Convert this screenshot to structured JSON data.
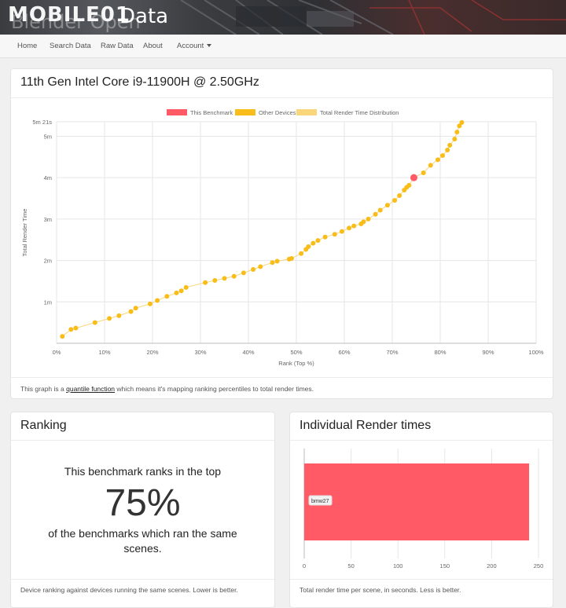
{
  "banner": {
    "watermark": "MOBILE01",
    "brand_behind": "Blender Open",
    "brand": "Data"
  },
  "nav": {
    "home": "Home",
    "search": "Search Data",
    "raw": "Raw Data",
    "about": "About",
    "account": "Account"
  },
  "device": {
    "title": "11th Gen Intel Core i9-11900H @ 2.50GHz"
  },
  "chart_note": {
    "prefix": "This graph is a ",
    "link": "quantile function",
    "suffix": " which means it's mapping ranking percentiles to total render times."
  },
  "ranking": {
    "title": "Ranking",
    "line1": "This benchmark ranks in the top",
    "percent": "75%",
    "line2": "of the benchmarks which ran the same",
    "line3": "scenes.",
    "footer": "Device ranking against devices running the same scenes. Lower is better."
  },
  "render_times": {
    "title": "Individual Render times",
    "footer": "Total render time per scene, in seconds. Less is better."
  },
  "colors": {
    "this_benchmark": "#ff5a65",
    "other_devices": "#f8bd19",
    "distribution": "#f9d67a"
  },
  "chart_data": [
    {
      "type": "scatter",
      "legend": [
        "This Benchmark",
        "Other Devices",
        "Total Render Time Distribution"
      ],
      "legend_position": "top",
      "xlabel": "Rank (Top %)",
      "ylabel": "Total Render Time",
      "x_ticks": [
        "0%",
        "10%",
        "20%",
        "30%",
        "40%",
        "50%",
        "60%",
        "70%",
        "80%",
        "90%",
        "100%"
      ],
      "y_ticks": [
        "1m",
        "2m",
        "3m",
        "4m",
        "5m",
        "5m 21s"
      ],
      "xlim": [
        0,
        100
      ],
      "ylim_seconds": [
        0,
        321
      ],
      "grid": true,
      "this_benchmark": {
        "x": 74.5,
        "y": 240
      },
      "other_devices": [
        [
          1.2,
          10
        ],
        [
          3,
          20
        ],
        [
          4,
          22
        ],
        [
          8,
          30
        ],
        [
          11,
          36
        ],
        [
          13,
          40
        ],
        [
          15.5,
          46
        ],
        [
          16.5,
          51
        ],
        [
          19.5,
          57
        ],
        [
          21,
          62
        ],
        [
          23,
          68
        ],
        [
          25,
          73
        ],
        [
          26,
          76
        ],
        [
          27,
          81
        ],
        [
          31,
          88
        ],
        [
          33,
          91
        ],
        [
          35,
          94
        ],
        [
          37,
          97
        ],
        [
          39,
          102
        ],
        [
          41,
          107
        ],
        [
          42.5,
          111
        ],
        [
          45,
          117
        ],
        [
          46,
          119
        ],
        [
          48.5,
          122
        ],
        [
          49,
          123
        ],
        [
          51,
          130
        ],
        [
          52,
          136
        ],
        [
          52.5,
          140
        ],
        [
          53.5,
          145
        ],
        [
          54.5,
          149
        ],
        [
          56,
          154
        ],
        [
          58,
          158
        ],
        [
          59.5,
          162
        ],
        [
          61,
          167
        ],
        [
          62,
          170
        ],
        [
          63.5,
          173
        ],
        [
          64,
          176
        ],
        [
          65,
          180
        ],
        [
          66.5,
          187
        ],
        [
          67.5,
          193
        ],
        [
          69,
          200
        ],
        [
          70.5,
          207
        ],
        [
          71.5,
          214
        ],
        [
          72.5,
          222
        ],
        [
          73,
          226
        ],
        [
          73.5,
          229
        ],
        [
          76.5,
          247
        ],
        [
          78,
          258
        ],
        [
          79.5,
          266
        ],
        [
          80.5,
          272
        ],
        [
          81.5,
          280
        ],
        [
          82,
          287
        ],
        [
          83,
          296
        ],
        [
          83.5,
          306
        ],
        [
          84,
          315
        ],
        [
          84.5,
          320
        ]
      ]
    },
    {
      "type": "bar",
      "orientation": "horizontal",
      "categories": [
        "bmw27"
      ],
      "values": [
        240
      ],
      "x_ticks": [
        "0",
        "50",
        "100",
        "150",
        "200",
        "250"
      ],
      "xlim": [
        0,
        250
      ]
    }
  ]
}
